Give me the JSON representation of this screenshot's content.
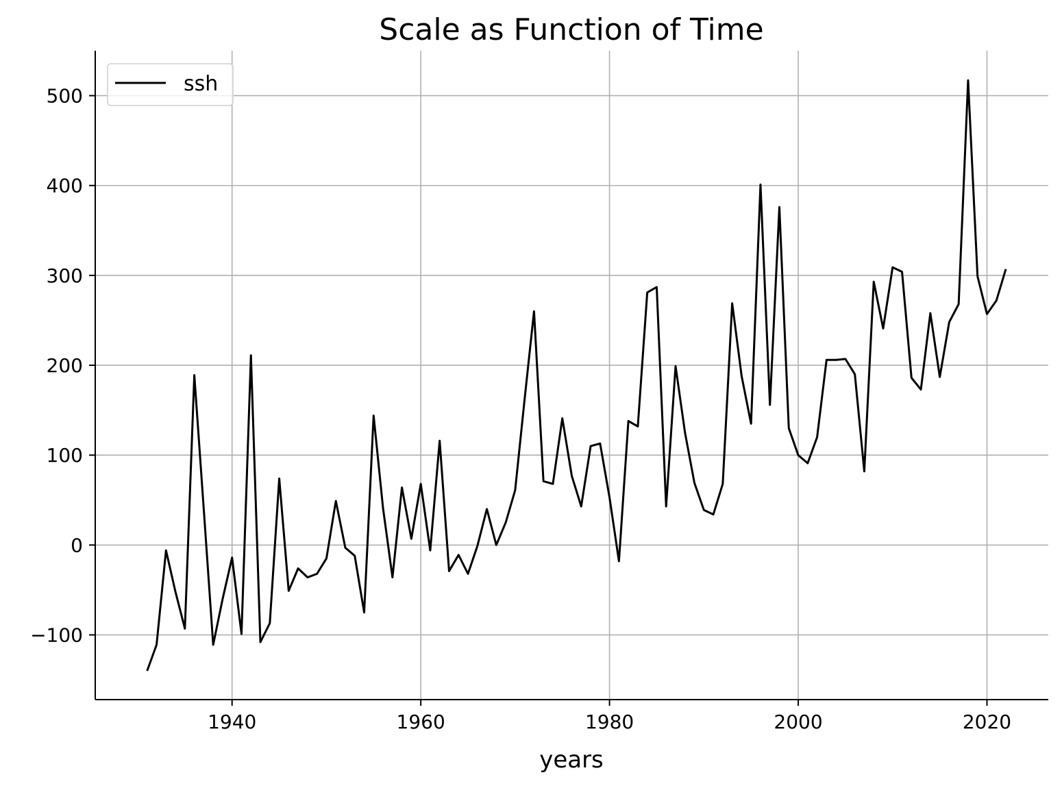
{
  "chart_data": {
    "type": "line",
    "title": "Scale as Function of Time",
    "xlabel": "years",
    "ylabel": "",
    "xlim": [
      1925.5,
      2026.5
    ],
    "ylim": [
      -172,
      550
    ],
    "xticks": [
      1940,
      1960,
      1980,
      2000,
      2020
    ],
    "xtick_labels": [
      "1940",
      "1960",
      "1980",
      "2000",
      "2020"
    ],
    "yticks": [
      -100,
      0,
      100,
      200,
      300,
      400,
      500
    ],
    "ytick_labels": [
      "−100",
      "0",
      "100",
      "200",
      "300",
      "400",
      "500"
    ],
    "grid": true,
    "legend_position": "upper-left",
    "series": [
      {
        "name": "ssh",
        "color": "#000000",
        "x": [
          1931,
          1932,
          1933,
          1934,
          1935,
          1936,
          1937,
          1938,
          1939,
          1940,
          1941,
          1942,
          1943,
          1944,
          1945,
          1946,
          1947,
          1948,
          1949,
          1950,
          1951,
          1952,
          1953,
          1954,
          1955,
          1956,
          1957,
          1958,
          1959,
          1960,
          1961,
          1962,
          1963,
          1964,
          1965,
          1966,
          1967,
          1968,
          1969,
          1970,
          1971,
          1972,
          1973,
          1974,
          1975,
          1976,
          1977,
          1978,
          1979,
          1980,
          1981,
          1982,
          1983,
          1984,
          1985,
          1986,
          1987,
          1988,
          1989,
          1990,
          1991,
          1992,
          1993,
          1994,
          1995,
          1996,
          1997,
          1998,
          1999,
          2000,
          2001,
          2002,
          2003,
          2004,
          2005,
          2006,
          2007,
          2008,
          2009,
          2010,
          2011,
          2012,
          2013,
          2014,
          2015,
          2016,
          2017,
          2018,
          2019,
          2020,
          2021,
          2022
        ],
        "y": [
          -140,
          -111,
          -6,
          -52,
          -93,
          189,
          40,
          -111,
          -60,
          -14,
          -99,
          211,
          -108,
          -87,
          74,
          -51,
          -26,
          -36,
          -32,
          -15,
          49,
          -3,
          -12,
          -75,
          144,
          41,
          -36,
          64,
          7,
          68,
          -6,
          116,
          -29,
          -11,
          -32,
          -1,
          40,
          0,
          25,
          61,
          162,
          260,
          71,
          68,
          141,
          77,
          43,
          110,
          113,
          53,
          -18,
          138,
          132,
          281,
          287,
          43,
          199,
          125,
          69,
          39,
          34,
          68,
          269,
          188,
          135,
          401,
          156,
          376,
          130,
          100,
          91,
          120,
          206,
          206,
          207,
          190,
          82,
          293,
          241,
          309,
          304,
          186,
          173,
          258,
          187,
          248,
          268,
          517,
          299,
          257,
          272,
          307
        ]
      }
    ]
  }
}
